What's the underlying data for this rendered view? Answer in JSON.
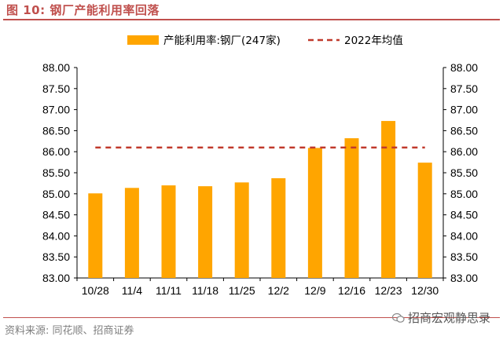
{
  "header": {
    "title": "图 10:  钢厂产能利用率回落"
  },
  "footer": {
    "source": "资料来源:  同花顺、招商证券",
    "watermark": "招商宏观静思录"
  },
  "colors": {
    "bar": "#ffa500",
    "avg_line": "#c0392b",
    "accent": "#c0504d"
  },
  "chart_data": {
    "type": "bar",
    "categories": [
      "10/28",
      "11/4",
      "11/11",
      "11/18",
      "11/25",
      "12/2",
      "12/9",
      "12/16",
      "12/23",
      "12/30"
    ],
    "series": [
      {
        "name": "产能利用率:钢厂(247家)",
        "type": "bar",
        "values": [
          85.01,
          85.14,
          85.2,
          85.18,
          85.27,
          85.37,
          86.09,
          86.32,
          86.73,
          85.74
        ]
      },
      {
        "name": "2022年均值",
        "type": "line-dashed",
        "values": [
          86.1,
          86.1,
          86.1,
          86.1,
          86.1,
          86.1,
          86.1,
          86.1,
          86.1,
          86.1
        ]
      }
    ],
    "ylim": [
      83.0,
      88.0
    ],
    "y2lim": [
      83.0,
      88.0
    ],
    "yticks": [
      "83.00",
      "83.50",
      "84.00",
      "84.50",
      "85.00",
      "85.50",
      "86.00",
      "86.50",
      "87.00",
      "87.50",
      "88.00"
    ],
    "grid": false,
    "legend": "top"
  }
}
